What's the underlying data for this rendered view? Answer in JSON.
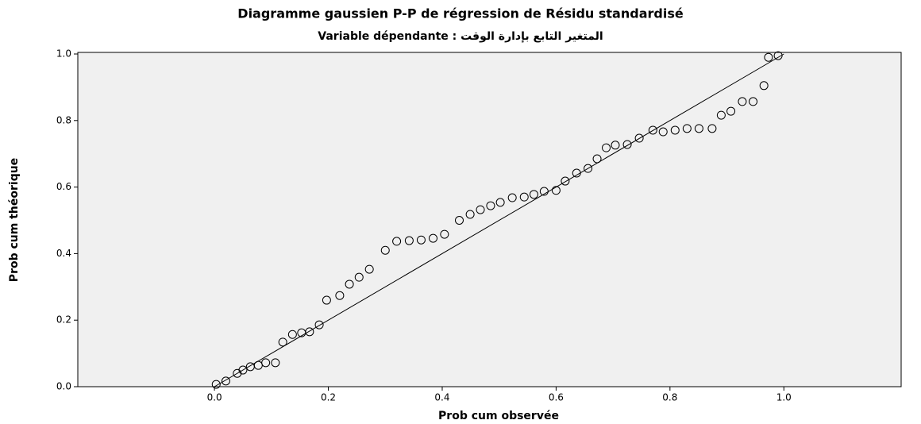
{
  "chart_data": {
    "type": "scatter",
    "title": "Diagramme gaussien P-P de régression de Résidu standardisé",
    "subtitle": "Variable dépendante : المتغير التابع بإدارة الوقت",
    "x_label": "Prob cum observée",
    "y_label": "Prob cum théorique",
    "x": [
      0.003,
      0.02,
      0.04,
      0.05,
      0.063,
      0.077,
      0.09,
      0.107,
      0.12,
      0.137,
      0.153,
      0.167,
      0.184,
      0.197,
      0.22,
      0.237,
      0.254,
      0.272,
      0.3,
      0.32,
      0.342,
      0.363,
      0.384,
      0.404,
      0.43,
      0.449,
      0.467,
      0.485,
      0.502,
      0.523,
      0.544,
      0.561,
      0.579,
      0.6,
      0.616,
      0.636,
      0.656,
      0.672,
      0.688,
      0.704,
      0.725,
      0.746,
      0.77,
      0.788,
      0.809,
      0.83,
      0.851,
      0.874,
      0.89,
      0.907,
      0.927,
      0.946,
      0.965,
      0.973,
      0.99
    ],
    "y": [
      0.007,
      0.017,
      0.04,
      0.05,
      0.06,
      0.064,
      0.072,
      0.072,
      0.134,
      0.157,
      0.162,
      0.165,
      0.186,
      0.26,
      0.274,
      0.308,
      0.329,
      0.353,
      0.41,
      0.437,
      0.439,
      0.441,
      0.446,
      0.458,
      0.5,
      0.518,
      0.532,
      0.544,
      0.554,
      0.568,
      0.57,
      0.578,
      0.587,
      0.59,
      0.618,
      0.642,
      0.656,
      0.685,
      0.718,
      0.726,
      0.728,
      0.747,
      0.771,
      0.766,
      0.771,
      0.776,
      0.776,
      0.776,
      0.816,
      0.828,
      0.857,
      0.857,
      0.905,
      0.99,
      0.995
    ],
    "color": "#000000",
    "xlim": [
      -0.24,
      1.206
    ],
    "ylim": [
      0,
      1
    ],
    "xticks": [
      {
        "value": 0,
        "label": "0.0"
      },
      {
        "value": 0.2,
        "label": "0.2"
      },
      {
        "value": 0.4,
        "label": "0.4"
      },
      {
        "value": 0.6,
        "label": "0.6"
      },
      {
        "value": 0.8,
        "label": "0.8"
      },
      {
        "value": 1,
        "label": "1.0"
      }
    ],
    "yticks": [
      {
        "value": 0,
        "label": "0.0"
      },
      {
        "value": 0.2,
        "label": "0.2"
      },
      {
        "value": 0.4,
        "label": "0.4"
      },
      {
        "value": 0.6,
        "label": "0.6"
      },
      {
        "value": 0.8,
        "label": "0.8"
      },
      {
        "value": 1,
        "label": "1.0"
      }
    ]
  }
}
